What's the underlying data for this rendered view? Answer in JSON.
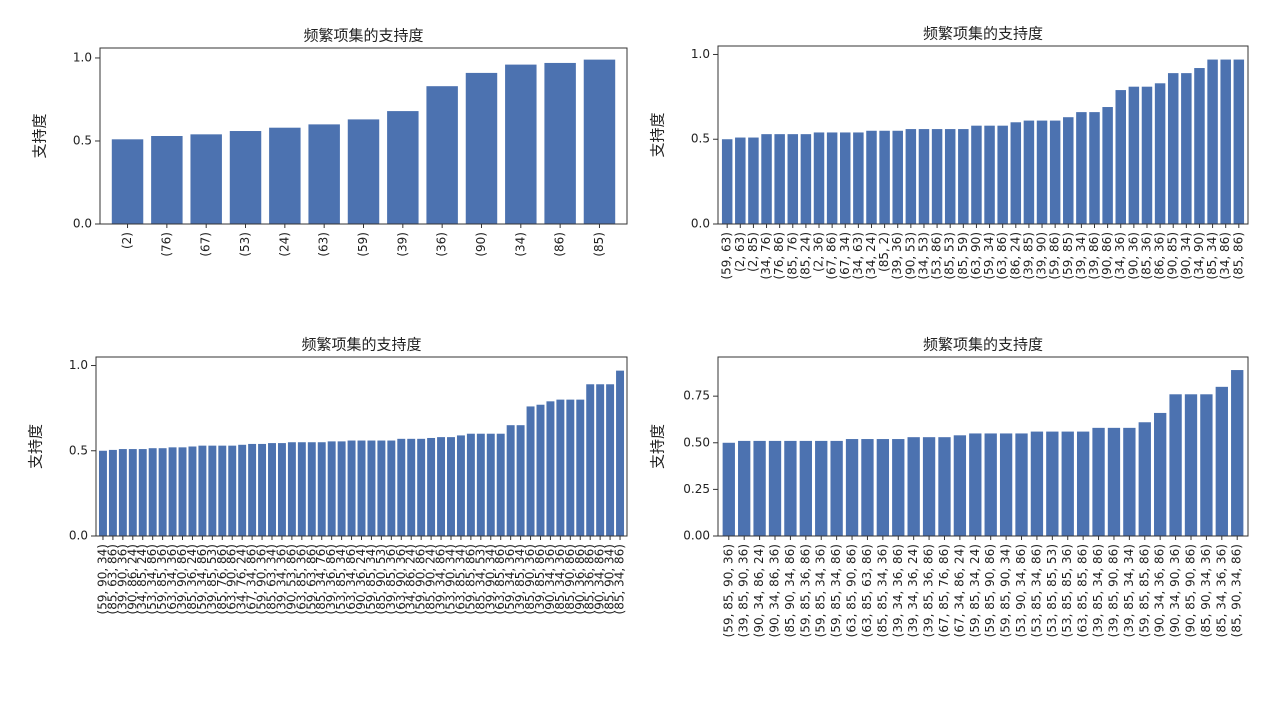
{
  "chart_data": [
    {
      "type": "bar",
      "title": "频繁项集的支持度",
      "ylabel": "支持度",
      "color": "#4c72b0",
      "categories": [
        "(2)",
        "(76)",
        "(67)",
        "(53)",
        "(24)",
        "(63)",
        "(59)",
        "(39)",
        "(36)",
        "(90)",
        "(34)",
        "(86)",
        "(85)"
      ],
      "values": [
        0.51,
        0.53,
        0.54,
        0.56,
        0.58,
        0.6,
        0.63,
        0.68,
        0.83,
        0.91,
        0.96,
        0.97,
        0.99
      ],
      "ylim": [
        0,
        1.06
      ],
      "yticks": [
        {
          "value": 0,
          "label": "0.0"
        },
        0.5,
        {
          "value": 1,
          "label": "1.0"
        }
      ]
    },
    {
      "type": "bar",
      "title": "频繁项集的支持度",
      "ylabel": "支持度",
      "color": "#4c72b0",
      "categories": [
        "(59, 63)",
        "(2, 63)",
        "(2, 85)",
        "(34, 76)",
        "(76, 86)",
        "(85, 76)",
        "(85, 24)",
        "(2, 36)",
        "(67, 86)",
        "(67, 34)",
        "(34, 63)",
        "(34, 24)",
        "(85, 2)",
        "(39, 36)",
        "(90, 53)",
        "(34, 53)",
        "(53, 86)",
        "(85, 53)",
        "(85, 59)",
        "(63, 90)",
        "(59, 34)",
        "(63, 86)",
        "(86, 24)",
        "(39, 85)",
        "(39, 90)",
        "(59, 86)",
        "(59, 85)",
        "(39, 34)",
        "(39, 86)",
        "(90, 86)",
        "(34, 36)",
        "(90, 36)",
        "(85, 36)",
        "(86, 36)",
        "(90, 85)",
        "(90, 34)",
        "(34, 90)",
        "(85, 34)",
        "(34, 86)",
        "(85, 86)"
      ],
      "values": [
        0.5,
        0.51,
        0.51,
        0.53,
        0.53,
        0.53,
        0.53,
        0.54,
        0.54,
        0.54,
        0.54,
        0.55,
        0.55,
        0.55,
        0.56,
        0.56,
        0.56,
        0.56,
        0.56,
        0.58,
        0.58,
        0.58,
        0.6,
        0.61,
        0.61,
        0.61,
        0.63,
        0.66,
        0.66,
        0.69,
        0.79,
        0.81,
        0.81,
        0.83,
        0.89,
        0.89,
        0.92,
        0.97,
        0.97,
        0.97
      ],
      "ylim": [
        0,
        1.05
      ],
      "yticks": [
        {
          "value": 0,
          "label": "0.0"
        },
        0.5,
        {
          "value": 1,
          "label": "1.0"
        }
      ]
    },
    {
      "type": "bar",
      "title": "频繁项集的支持度",
      "ylabel": "支持度",
      "color": "#4c72b0",
      "categories": [
        "(59, 90, 34)",
        "(85, 63, 86)",
        "(39, 90, 36)",
        "(90, 86, 24)",
        "(34, 85, 24)",
        "(53, 34, 86)",
        "(59, 85, 36)",
        "(63, 34, 36)",
        "(39, 90, 86)",
        "(85, 36, 24)",
        "(59, 34, 86)",
        "(39, 85, 53)",
        "(85, 76, 86)",
        "(63, 90, 86)",
        "(34, 76, 24)",
        "(67, 34, 86)",
        "(59, 90, 36)",
        "(85, 63, 34)",
        "(39, 34, 36)",
        "(90, 53, 86)",
        "(63, 85, 36)",
        "(59, 63, 86)",
        "(85, 34, 76)",
        "(39, 36, 86)",
        "(53, 85, 34)",
        "(63, 34, 86)",
        "(90, 36, 24)",
        "(59, 85, 34)",
        "(85, 90, 53)",
        "(39, 85, 36)",
        "(63, 90, 36)",
        "(34, 86, 24)",
        "(59, 90, 86)",
        "(85, 90, 24)",
        "(39, 34, 86)",
        "(53, 90, 34)",
        "(63, 85, 34)",
        "(59, 85, 86)",
        "(85, 34, 53)",
        "(39, 90, 34)",
        "(63, 85, 86)",
        "(59, 34, 36)",
        "(39, 85, 34)",
        "(85, 90, 36)",
        "(39, 85, 86)",
        "(90, 34, 36)",
        "(85, 34, 36)",
        "(85, 90, 86)",
        "(90, 36, 86)",
        "(85, 36, 86)",
        "(90, 34, 86)",
        "(85, 90, 34)",
        "(85, 34, 86)"
      ],
      "values": [
        0.5,
        0.505,
        0.51,
        0.51,
        0.51,
        0.515,
        0.515,
        0.52,
        0.52,
        0.525,
        0.53,
        0.53,
        0.53,
        0.53,
        0.535,
        0.54,
        0.54,
        0.545,
        0.545,
        0.55,
        0.55,
        0.55,
        0.55,
        0.555,
        0.555,
        0.56,
        0.56,
        0.56,
        0.56,
        0.56,
        0.57,
        0.57,
        0.57,
        0.575,
        0.58,
        0.58,
        0.59,
        0.6,
        0.6,
        0.6,
        0.6,
        0.65,
        0.65,
        0.76,
        0.77,
        0.79,
        0.8,
        0.8,
        0.8,
        0.89,
        0.89,
        0.89,
        0.97
      ],
      "ylim": [
        0,
        1.05
      ],
      "yticks": [
        {
          "value": 0,
          "label": "0.0"
        },
        0.5,
        {
          "value": 1,
          "label": "1.0"
        }
      ]
    },
    {
      "type": "bar",
      "title": "频繁项集的支持度",
      "ylabel": "支持度",
      "color": "#4c72b0",
      "categories": [
        "(59, 85, 90, 36)",
        "(39, 85, 90, 36)",
        "(90, 34, 86, 24)",
        "(90, 34, 86, 36)",
        "(85, 90, 34, 86)",
        "(59, 85, 36, 86)",
        "(59, 85, 34, 36)",
        "(59, 85, 34, 86)",
        "(63, 85, 90, 86)",
        "(63, 85, 63, 86)",
        "(85, 85, 34, 36)",
        "(39, 34, 36, 86)",
        "(39, 34, 36, 24)",
        "(39, 85, 36, 86)",
        "(67, 85, 76, 86)",
        "(67, 34, 86, 24)",
        "(59, 85, 34, 24)",
        "(59, 85, 90, 86)",
        "(59, 85, 90, 34)",
        "(53, 90, 34, 86)",
        "(53, 85, 34, 86)",
        "(53, 85, 85, 53)",
        "(53, 85, 85, 36)",
        "(63, 85, 85, 86)",
        "(39, 85, 34, 86)",
        "(39, 85, 90, 86)",
        "(39, 85, 34, 34)",
        "(59, 85, 85, 86)",
        "(90, 34, 36, 86)",
        "(90, 34, 90, 36)",
        "(90, 85, 90, 86)",
        "(85, 90, 34, 36)",
        "(85, 34, 36, 36)",
        "(85, 90, 34, 86)"
      ],
      "values": [
        0.5,
        0.51,
        0.51,
        0.51,
        0.51,
        0.51,
        0.51,
        0.51,
        0.52,
        0.52,
        0.52,
        0.52,
        0.53,
        0.53,
        0.53,
        0.54,
        0.55,
        0.55,
        0.55,
        0.55,
        0.56,
        0.56,
        0.56,
        0.56,
        0.58,
        0.58,
        0.58,
        0.61,
        0.66,
        0.76,
        0.76,
        0.76,
        0.8,
        0.89
      ],
      "ylim": [
        0,
        0.96
      ],
      "yticks": [
        {
          "value": 0,
          "label": "0.00"
        },
        0.25,
        {
          "value": 0.5,
          "label": "0.50"
        },
        0.75
      ]
    }
  ]
}
